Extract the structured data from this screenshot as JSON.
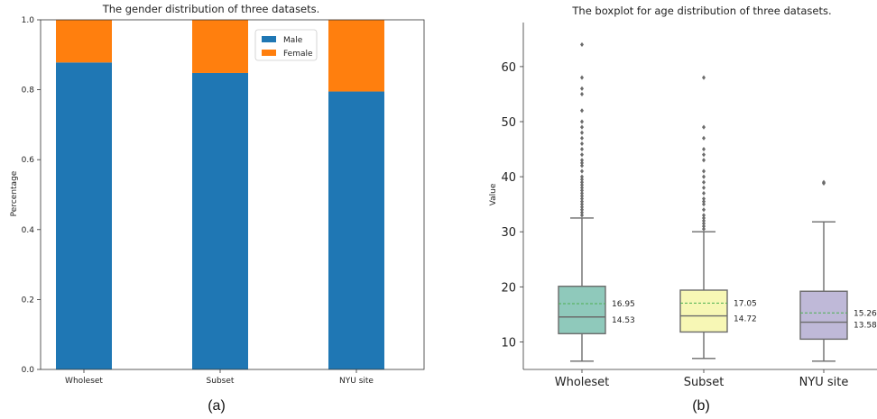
{
  "chart_data": [
    {
      "type": "bar",
      "stacked": true,
      "title": "The gender distribution of three datasets.",
      "ylabel": "Percentage",
      "xlabel": "",
      "categories": [
        "Wholeset",
        "Subset",
        "NYU site"
      ],
      "series": [
        {
          "name": "Male",
          "values": [
            0.878,
            0.848,
            0.795
          ],
          "color": "#1f77b4"
        },
        {
          "name": "Female",
          "values": [
            0.122,
            0.152,
            0.205
          ],
          "color": "#ff7f0e"
        }
      ],
      "ylim": [
        0,
        1.0
      ],
      "yticks": [
        "0.0",
        "0.2",
        "0.4",
        "0.6",
        "0.8",
        "1.0"
      ],
      "legend": "top-center",
      "grid": false,
      "caption": "(a)"
    },
    {
      "type": "boxplot",
      "title": "The boxplot for age distribution of three datasets.",
      "ylabel": "Value",
      "xlabel": "",
      "categories": [
        "Wholeset",
        "Subset",
        "NYU site"
      ],
      "colors": [
        "#8fc9bb",
        "#f7f7b5",
        "#bfb9d8"
      ],
      "boxes": [
        {
          "whislo": 6.5,
          "q1": 11.5,
          "med": 14.53,
          "mean": 16.95,
          "q3": 20.1,
          "whishi": 32.5,
          "fliers": [
            33,
            33.5,
            34,
            34.5,
            35,
            35.5,
            36,
            36.5,
            37,
            37.5,
            38,
            38.5,
            39,
            39.5,
            40,
            41,
            42,
            42.5,
            43,
            44,
            45,
            46,
            47,
            48,
            49,
            50,
            52,
            55,
            56,
            58,
            64
          ]
        },
        {
          "whislo": 7.0,
          "q1": 11.8,
          "med": 14.72,
          "mean": 17.05,
          "q3": 19.4,
          "whishi": 30.0,
          "fliers": [
            30.5,
            31,
            31.5,
            32,
            32.5,
            33,
            34,
            35,
            35.5,
            36,
            37,
            38,
            39,
            40,
            41,
            43,
            44,
            45,
            47,
            49,
            58
          ]
        },
        {
          "whislo": 6.5,
          "q1": 10.5,
          "med": 13.58,
          "mean": 15.26,
          "q3": 19.2,
          "whishi": 31.8,
          "fliers": [
            38.8,
            39.0
          ]
        }
      ],
      "mean_labels": [
        "16.95",
        "17.05",
        "15.26"
      ],
      "median_labels": [
        "14.53",
        "14.72",
        "13.58"
      ],
      "ylim": [
        5,
        68
      ],
      "yticks": [
        "10",
        "20",
        "30",
        "40",
        "50",
        "60"
      ],
      "grid": false,
      "caption": "(b)"
    }
  ]
}
